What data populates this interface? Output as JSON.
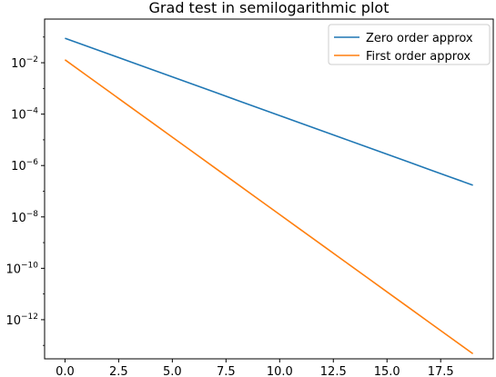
{
  "chart_data": {
    "type": "line",
    "title": "Grad test in semilogarithmic plot",
    "xlabel": "",
    "ylabel": "",
    "y_scale": "log",
    "x_ticks": [
      0.0,
      2.5,
      5.0,
      7.5,
      10.0,
      12.5,
      15.0,
      17.5
    ],
    "x_tick_labels": [
      "0.0",
      "2.5",
      "5.0",
      "7.5",
      "10.0",
      "12.5",
      "15.0",
      "17.5"
    ],
    "y_tick_exponents": [
      -12,
      -10,
      -8,
      -6,
      -4,
      -2
    ],
    "y_tick_labels": [
      {
        "base": "10",
        "exp": "-12"
      },
      {
        "base": "10",
        "exp": "-10"
      },
      {
        "base": "10",
        "exp": "-8"
      },
      {
        "base": "10",
        "exp": "-6"
      },
      {
        "base": "10",
        "exp": "-4"
      },
      {
        "base": "10",
        "exp": "-2"
      }
    ],
    "xlim": [
      -0.95,
      19.95
    ],
    "ylim": [
      3e-14,
      0.5
    ],
    "grid": false,
    "legend": "top-right",
    "x": [
      0,
      1,
      2,
      3,
      4,
      5,
      6,
      7,
      8,
      9,
      10,
      11,
      12,
      13,
      14,
      15,
      16,
      17,
      18,
      19
    ],
    "series": [
      {
        "name": "Zero order approx",
        "color": "#1f77b4",
        "values": [
          0.09,
          0.045,
          0.0225,
          0.01125,
          0.005625,
          0.0028125,
          0.00140625,
          0.000703125,
          0.000351563,
          0.000175781,
          8.78906e-05,
          4.39453e-05,
          2.19727e-05,
          1.09863e-05,
          5.49316e-06,
          2.74658e-06,
          1.37329e-06,
          6.86646e-07,
          3.43323e-07,
          1.71661e-07
        ]
      },
      {
        "name": "First order approx",
        "color": "#ff7f0e",
        "values": [
          0.013,
          0.00325,
          0.0008125,
          0.000203125,
          5.07813e-05,
          1.26953e-05,
          3.17383e-06,
          7.93457e-07,
          1.98364e-07,
          4.95911e-08,
          1.23978e-08,
          3.09944e-09,
          7.7486e-10,
          1.93715e-10,
          4.84288e-11,
          1.21072e-11,
          3.0268e-12,
          7.567e-13,
          1.89175e-13,
          4.72938e-14
        ]
      }
    ]
  }
}
